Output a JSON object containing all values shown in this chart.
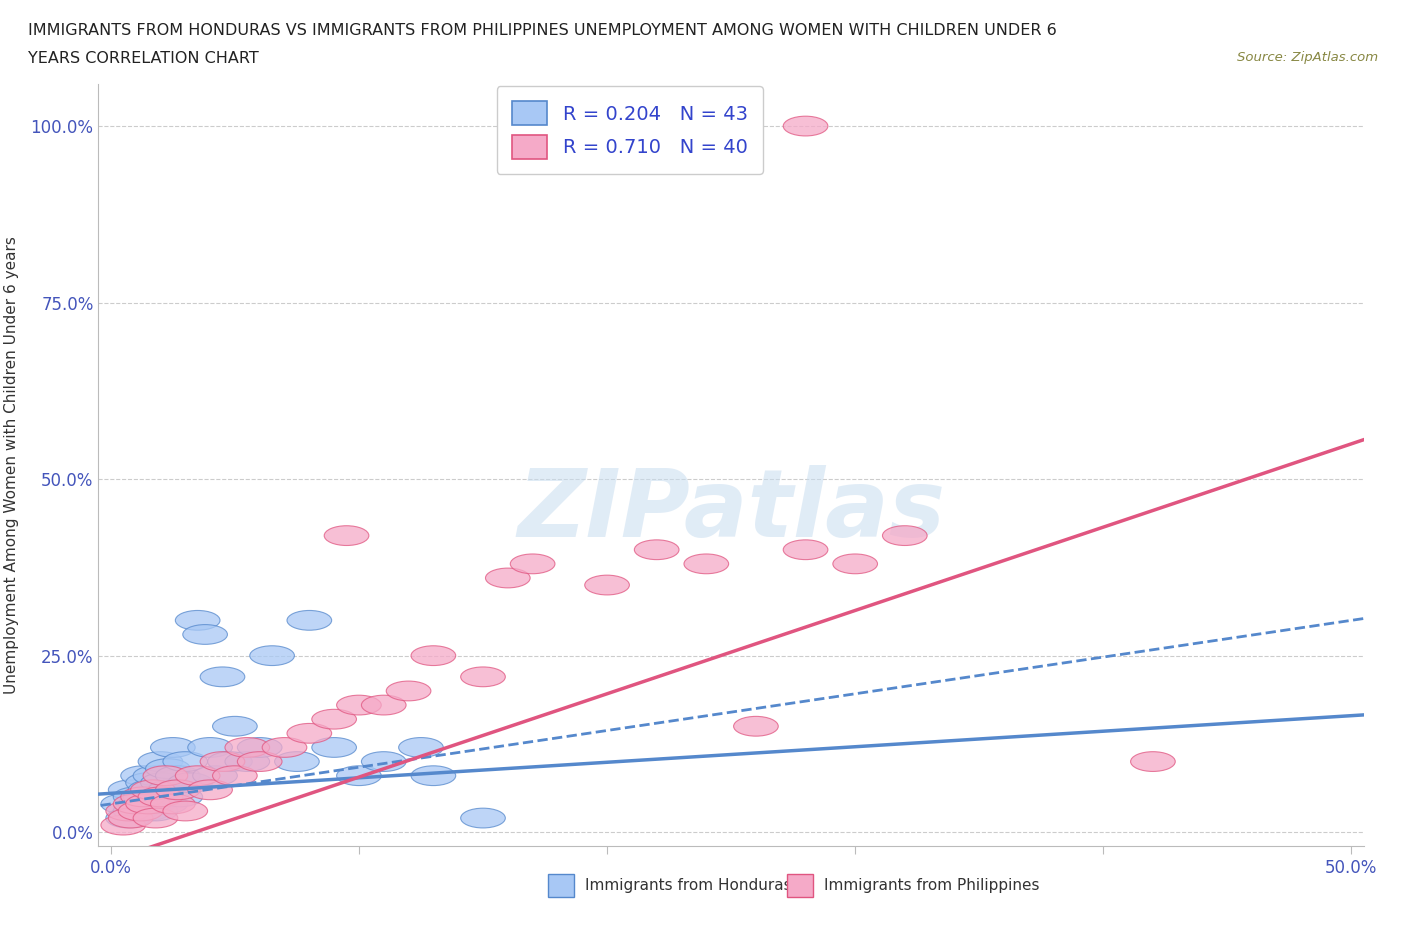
{
  "title_line1": "IMMIGRANTS FROM HONDURAS VS IMMIGRANTS FROM PHILIPPINES UNEMPLOYMENT AMONG WOMEN WITH CHILDREN UNDER 6",
  "title_line2": "YEARS CORRELATION CHART",
  "source_text": "Source: ZipAtlas.com",
  "ylabel": "Unemployment Among Women with Children Under 6 years",
  "xlim": [
    -0.005,
    0.505
  ],
  "ylim": [
    -0.02,
    1.06
  ],
  "yticks": [
    0.0,
    0.25,
    0.5,
    0.75,
    1.0
  ],
  "ytick_labels": [
    "0.0%",
    "25.0%",
    "50.0%",
    "75.0%",
    "100.0%"
  ],
  "xticks": [
    0.0,
    0.1,
    0.2,
    0.3,
    0.4,
    0.5
  ],
  "xtick_labels": [
    "0.0%",
    "",
    "",
    "",
    "",
    "50.0%"
  ],
  "color_honduras": "#a8c8f5",
  "color_philippines": "#f5aac8",
  "color_line_honduras": "#5588cc",
  "color_line_philippines": "#e05580",
  "legend_r_honduras": "0.204",
  "legend_n_honduras": "43",
  "legend_r_philippines": "0.710",
  "legend_n_philippines": "40",
  "watermark": "ZIPatlas",
  "honduras_x": [
    0.005,
    0.007,
    0.008,
    0.01,
    0.01,
    0.012,
    0.013,
    0.014,
    0.015,
    0.015,
    0.016,
    0.017,
    0.018,
    0.018,
    0.02,
    0.02,
    0.021,
    0.022,
    0.023,
    0.024,
    0.025,
    0.027,
    0.028,
    0.03,
    0.032,
    0.035,
    0.038,
    0.04,
    0.042,
    0.045,
    0.048,
    0.05,
    0.055,
    0.06,
    0.065,
    0.075,
    0.08,
    0.09,
    0.1,
    0.11,
    0.125,
    0.13,
    0.15
  ],
  "honduras_y": [
    0.04,
    0.02,
    0.06,
    0.03,
    0.05,
    0.04,
    0.08,
    0.05,
    0.07,
    0.03,
    0.06,
    0.04,
    0.08,
    0.03,
    0.05,
    0.1,
    0.07,
    0.04,
    0.09,
    0.06,
    0.12,
    0.08,
    0.05,
    0.1,
    0.07,
    0.3,
    0.28,
    0.12,
    0.08,
    0.22,
    0.1,
    0.15,
    0.1,
    0.12,
    0.25,
    0.1,
    0.3,
    0.12,
    0.08,
    0.1,
    0.12,
    0.08,
    0.02
  ],
  "philippines_x": [
    0.005,
    0.007,
    0.008,
    0.01,
    0.012,
    0.013,
    0.015,
    0.017,
    0.018,
    0.02,
    0.022,
    0.025,
    0.027,
    0.03,
    0.035,
    0.04,
    0.045,
    0.05,
    0.055,
    0.06,
    0.07,
    0.08,
    0.09,
    0.095,
    0.1,
    0.11,
    0.12,
    0.13,
    0.15,
    0.16,
    0.17,
    0.2,
    0.22,
    0.24,
    0.26,
    0.28,
    0.3,
    0.32,
    0.42,
    0.28
  ],
  "philippines_y": [
    0.01,
    0.03,
    0.02,
    0.04,
    0.03,
    0.05,
    0.04,
    0.06,
    0.02,
    0.05,
    0.08,
    0.04,
    0.06,
    0.03,
    0.08,
    0.06,
    0.1,
    0.08,
    0.12,
    0.1,
    0.12,
    0.14,
    0.16,
    0.42,
    0.18,
    0.18,
    0.2,
    0.25,
    0.22,
    0.36,
    0.38,
    0.35,
    0.4,
    0.38,
    0.15,
    0.4,
    0.38,
    0.42,
    0.1,
    1.0
  ]
}
